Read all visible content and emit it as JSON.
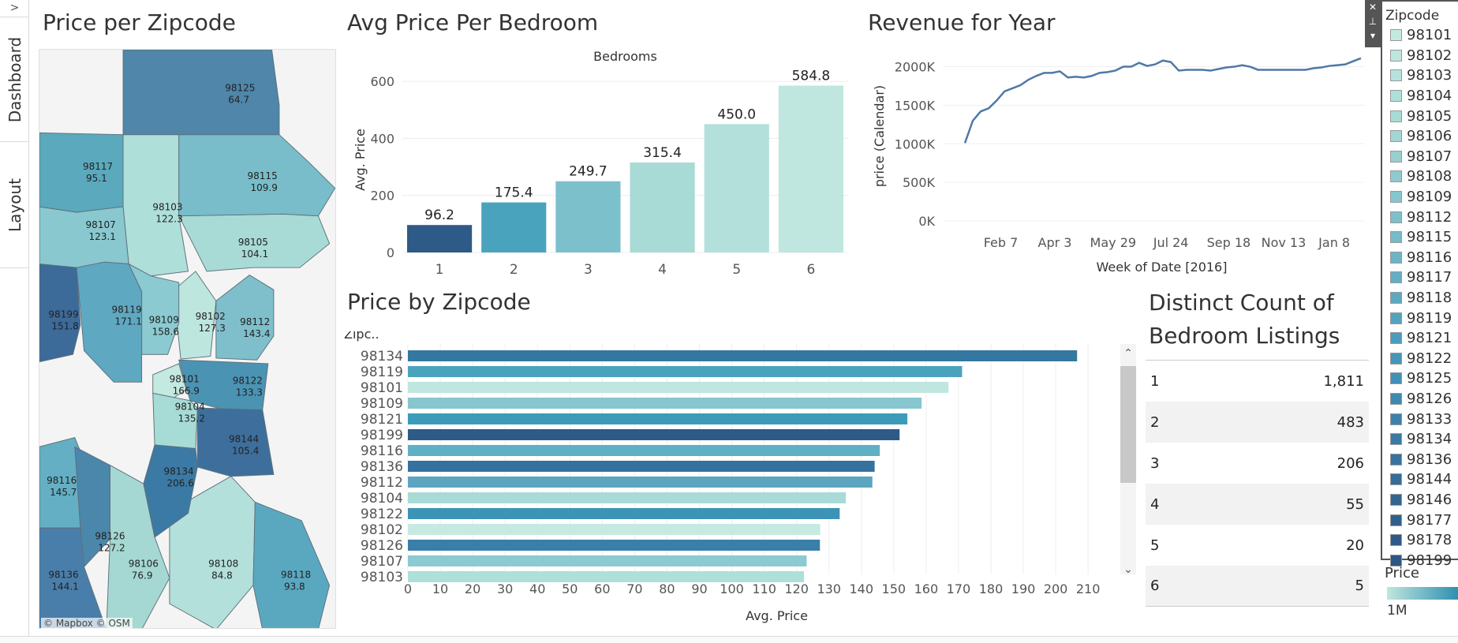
{
  "tabs": {
    "collapse_label": ">",
    "items": [
      {
        "label": "Dashboard"
      },
      {
        "label": "Layout"
      }
    ]
  },
  "map": {
    "title": "Price per Zipcode",
    "attribution": "© Mapbox © OSM",
    "regions": [
      {
        "zip": "98125",
        "price": "64.7",
        "color": "#4f86a9"
      },
      {
        "zip": "98117",
        "price": "95.1",
        "color": "#5aa9bd"
      },
      {
        "zip": "98115",
        "price": "109.9",
        "color": "#78bdc9"
      },
      {
        "zip": "98103",
        "price": "122.3",
        "color": "#aedfd9"
      },
      {
        "zip": "98107",
        "price": "123.1",
        "color": "#89c8cf"
      },
      {
        "zip": "98105",
        "price": "104.1",
        "color": "#a8dad6"
      },
      {
        "zip": "98199",
        "price": "151.8",
        "color": "#3c6a99"
      },
      {
        "zip": "98119",
        "price": "171.1",
        "color": "#5fa8c1"
      },
      {
        "zip": "98109",
        "price": "158.6",
        "color": "#8bcad0"
      },
      {
        "zip": "98102",
        "price": "127.3",
        "color": "#bde6de"
      },
      {
        "zip": "98112",
        "price": "143.4",
        "color": "#7fbfcc"
      },
      {
        "zip": "98101",
        "price": "166.9",
        "color": "#c4e9e1"
      },
      {
        "zip": "98122",
        "price": "133.3",
        "color": "#4b93b3"
      },
      {
        "zip": "98104",
        "price": "135.2",
        "color": "#a7dbd5"
      },
      {
        "zip": "98144",
        "price": "105.4",
        "color": "#3e6f9c"
      },
      {
        "zip": "98116",
        "price": "145.7",
        "color": "#64afc4"
      },
      {
        "zip": "98134",
        "price": "206.6",
        "color": "#3b7aa4"
      },
      {
        "zip": "98126",
        "price": "127.2",
        "color": "#4b86ab"
      },
      {
        "zip": "98106",
        "price": "76.9",
        "color": "#a5d8d3"
      },
      {
        "zip": "98108",
        "price": "84.8",
        "color": "#b3e0da"
      },
      {
        "zip": "98118",
        "price": "93.8",
        "color": "#5aa8c0"
      },
      {
        "zip": "98136",
        "price": "144.1",
        "color": "#4a7eaa"
      }
    ]
  },
  "bedroom_chart_title": "Avg Price Per Bedroom",
  "revenue_chart_title": "Revenue for Year",
  "zip_chart_title": "Price by Zipcode",
  "chart_data": [
    {
      "type": "bar",
      "title": "Avg Price Per Bedroom",
      "xlabel": "Bedrooms",
      "ylabel": "Avg. Price",
      "categories": [
        "1",
        "2",
        "3",
        "4",
        "5",
        "6"
      ],
      "values": [
        96.2,
        175.4,
        249.7,
        315.4,
        450.0,
        584.8
      ],
      "value_labels": [
        "96.2",
        "175.4",
        "249.7",
        "315.4",
        "450.0",
        "584.8"
      ],
      "colors": [
        "#2e5a87",
        "#4aa3bd",
        "#7cc0cb",
        "#a8dad6",
        "#b3e0da",
        "#bfe6df"
      ],
      "yticks": [
        "0",
        "200",
        "400",
        "600"
      ],
      "ylim": [
        0,
        650
      ],
      "grid": true
    },
    {
      "type": "line",
      "title": "Revenue for Year",
      "xlabel": "Week of Date [2016]",
      "ylabel": "price (Calendar)",
      "xticks": [
        "Feb 7",
        "Apr 3",
        "May 29",
        "Jul 24",
        "Sep 18",
        "Nov 13",
        "Jan 8"
      ],
      "yticks": [
        "0K",
        "500K",
        "1000K",
        "1500K",
        "2000K"
      ],
      "ylim": [
        0,
        2200000
      ],
      "color": "#4e79a7",
      "values": [
        1010000,
        1300000,
        1420000,
        1460000,
        1560000,
        1680000,
        1720000,
        1760000,
        1830000,
        1880000,
        1920000,
        1920000,
        1940000,
        1860000,
        1870000,
        1860000,
        1880000,
        1920000,
        1930000,
        1950000,
        2000000,
        2000000,
        2050000,
        2010000,
        2030000,
        2080000,
        2060000,
        1950000,
        1960000,
        1960000,
        1960000,
        1950000,
        1970000,
        1990000,
        2000000,
        2020000,
        2000000,
        1960000,
        1960000,
        1960000,
        1960000,
        1960000,
        1960000,
        1960000,
        1980000,
        1990000,
        2010000,
        2020000,
        2030000,
        2070000,
        2110000
      ]
    },
    {
      "type": "bar",
      "orientation": "horizontal",
      "title": "Price by Zipcode",
      "ylabel": "Zipc..",
      "xlabel": "Avg. Price",
      "categories": [
        "98134",
        "98119",
        "98101",
        "98109",
        "98121",
        "98199",
        "98116",
        "98136",
        "98112",
        "98104",
        "98122",
        "98102",
        "98126",
        "98107",
        "98103"
      ],
      "values": [
        206.6,
        171.1,
        166.9,
        158.6,
        154.2,
        151.8,
        145.7,
        144.1,
        143.4,
        135.2,
        133.3,
        127.3,
        127.2,
        123.1,
        122.3
      ],
      "colors": [
        "#3477a0",
        "#4aa3bd",
        "#bfe6df",
        "#86c6ce",
        "#3c9bb9",
        "#2e5a87",
        "#5fb0c4",
        "#34719f",
        "#5ca5c0",
        "#a8dad6",
        "#3c93b6",
        "#c6eae2",
        "#3a7fa9",
        "#8bcad0",
        "#aedfd9"
      ],
      "xticks": [
        "0",
        "10",
        "20",
        "30",
        "40",
        "50",
        "60",
        "70",
        "80",
        "90",
        "100",
        "110",
        "120",
        "130",
        "140",
        "150",
        "160",
        "170",
        "180",
        "190",
        "200",
        "210"
      ],
      "xlim": [
        0,
        218
      ],
      "grid": true
    }
  ],
  "distinct_count": {
    "title_line1": "Distinct Count of",
    "title_line2": "Bedroom Listings",
    "rows": [
      {
        "label": "1",
        "value": "1,811"
      },
      {
        "label": "2",
        "value": "483"
      },
      {
        "label": "3",
        "value": "206"
      },
      {
        "label": "4",
        "value": "55"
      },
      {
        "label": "5",
        "value": "20"
      },
      {
        "label": "6",
        "value": "5"
      }
    ]
  },
  "zip_legend": {
    "title": "Zipcode",
    "items": [
      {
        "zip": "98101",
        "color": "#c4e9e1"
      },
      {
        "zip": "98102",
        "color": "#bde6de"
      },
      {
        "zip": "98103",
        "color": "#b6e2dc"
      },
      {
        "zip": "98104",
        "color": "#afdfd9"
      },
      {
        "zip": "98105",
        "color": "#a8dad6"
      },
      {
        "zip": "98106",
        "color": "#a1d6d3"
      },
      {
        "zip": "98107",
        "color": "#97d0cf"
      },
      {
        "zip": "98108",
        "color": "#8fcacd"
      },
      {
        "zip": "98109",
        "color": "#86c6ce"
      },
      {
        "zip": "98112",
        "color": "#7dc0cb"
      },
      {
        "zip": "98115",
        "color": "#75bbc8"
      },
      {
        "zip": "98116",
        "color": "#6db5c6"
      },
      {
        "zip": "98117",
        "color": "#64afc4"
      },
      {
        "zip": "98118",
        "color": "#5ca9c1"
      },
      {
        "zip": "98119",
        "color": "#53a3bf"
      },
      {
        "zip": "98121",
        "color": "#4b9dbd"
      },
      {
        "zip": "98122",
        "color": "#4597ba"
      },
      {
        "zip": "98125",
        "color": "#4290b6"
      },
      {
        "zip": "98126",
        "color": "#3f88b1"
      },
      {
        "zip": "98133",
        "color": "#3c81ab"
      },
      {
        "zip": "98134",
        "color": "#3a7aa5"
      },
      {
        "zip": "98136",
        "color": "#37739f"
      },
      {
        "zip": "98144",
        "color": "#356c98"
      },
      {
        "zip": "98146",
        "color": "#336592"
      },
      {
        "zip": "98177",
        "color": "#315f8c"
      },
      {
        "zip": "98178",
        "color": "#2f5a88"
      },
      {
        "zip": "98199",
        "color": "#2d5585"
      }
    ]
  },
  "price_legend": {
    "title": "Price",
    "label": "1M"
  },
  "legend_tools": {
    "close": "✕",
    "pin": "⊥",
    "menu": "▾"
  }
}
